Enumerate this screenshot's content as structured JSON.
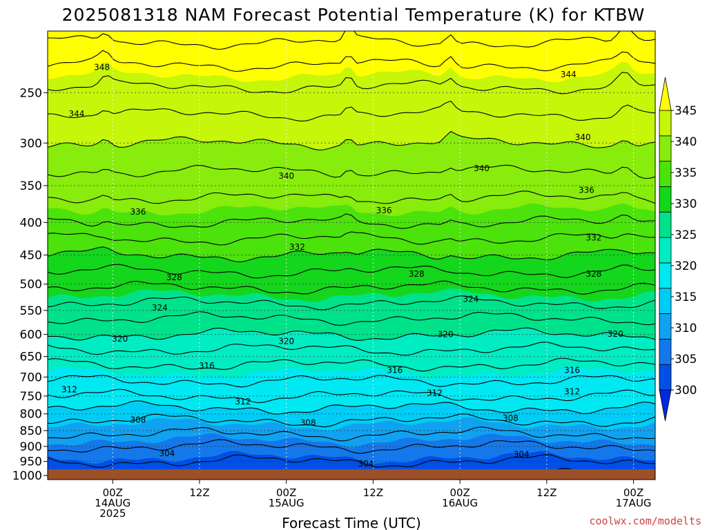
{
  "chart_data": {
    "type": "contour",
    "title": "2025081318 NAM Forecast Potential Temperature (K) for KTBW",
    "xlabel": "Forecast Time (UTC)",
    "ylabel": "",
    "y_scale": "log",
    "ylim": [
      1015,
      200
    ],
    "y_ticks": [
      250,
      300,
      350,
      400,
      450,
      500,
      550,
      600,
      650,
      700,
      750,
      800,
      850,
      900,
      950,
      1000
    ],
    "xlim_hours": [
      -9,
      75
    ],
    "x_ticks": [
      {
        "hour": 0,
        "lines": [
          "00Z",
          "14AUG",
          "2025"
        ]
      },
      {
        "hour": 12,
        "lines": [
          "12Z"
        ]
      },
      {
        "hour": 24,
        "lines": [
          "00Z",
          "15AUG"
        ]
      },
      {
        "hour": 36,
        "lines": [
          "12Z"
        ]
      },
      {
        "hour": 48,
        "lines": [
          "00Z",
          "16AUG"
        ]
      },
      {
        "hour": 60,
        "lines": [
          "12Z"
        ]
      },
      {
        "hour": 72,
        "lines": [
          "00Z",
          "17AUG"
        ]
      }
    ],
    "colorbar": {
      "levels": [
        300,
        305,
        310,
        315,
        320,
        325,
        330,
        335,
        340,
        345
      ],
      "labels": [
        "345",
        "340",
        "335",
        "330",
        "325",
        "320",
        "315",
        "310",
        "305",
        "300"
      ],
      "colors": [
        "#0028e0",
        "#0050e6",
        "#1478ea",
        "#10a2f0",
        "#00cdf5",
        "#00e8f2",
        "#00ecc2",
        "#00e28a",
        "#14d61c",
        "#4ce20c",
        "#88ec0c",
        "#c6f60a",
        "#ffff00"
      ],
      "extend": "both"
    },
    "contour_interval": 2,
    "profile": [
      {
        "p": 1000,
        "theta": 300.5
      },
      {
        "p": 950,
        "theta": 302
      },
      {
        "p": 900,
        "theta": 304
      },
      {
        "p": 850,
        "theta": 306.5
      },
      {
        "p": 800,
        "theta": 309
      },
      {
        "p": 750,
        "theta": 312
      },
      {
        "p": 700,
        "theta": 314.5
      },
      {
        "p": 650,
        "theta": 317
      },
      {
        "p": 600,
        "theta": 320
      },
      {
        "p": 550,
        "theta": 323
      },
      {
        "p": 500,
        "theta": 326.5
      },
      {
        "p": 450,
        "theta": 330
      },
      {
        "p": 400,
        "theta": 334
      },
      {
        "p": 350,
        "theta": 337
      },
      {
        "p": 300,
        "theta": 340
      },
      {
        "p": 250,
        "theta": 343.5
      },
      {
        "p": 200,
        "theta": 349
      }
    ],
    "contour_labels": [
      {
        "value": "348",
        "hour": -1.5,
        "p": 228
      },
      {
        "value": "344",
        "hour": -5,
        "p": 270
      },
      {
        "value": "344",
        "hour": 63,
        "p": 234
      },
      {
        "value": "340",
        "hour": 24,
        "p": 338
      },
      {
        "value": "340",
        "hour": 51,
        "p": 329
      },
      {
        "value": "340",
        "hour": 65,
        "p": 294
      },
      {
        "value": "336",
        "hour": 3.5,
        "p": 385
      },
      {
        "value": "336",
        "hour": 37.5,
        "p": 383
      },
      {
        "value": "336",
        "hour": 65.5,
        "p": 356
      },
      {
        "value": "332",
        "hour": 25.5,
        "p": 437
      },
      {
        "value": "332",
        "hour": 66.5,
        "p": 423
      },
      {
        "value": "328",
        "hour": 8.5,
        "p": 488
      },
      {
        "value": "328",
        "hour": 42,
        "p": 482
      },
      {
        "value": "328",
        "hour": 66.5,
        "p": 482
      },
      {
        "value": "324",
        "hour": 6.5,
        "p": 545
      },
      {
        "value": "324",
        "hour": 49.5,
        "p": 528
      },
      {
        "value": "320",
        "hour": 1,
        "p": 610
      },
      {
        "value": "320",
        "hour": 24,
        "p": 615
      },
      {
        "value": "320",
        "hour": 46,
        "p": 600
      },
      {
        "value": "320",
        "hour": 69.5,
        "p": 599
      },
      {
        "value": "316",
        "hour": 13,
        "p": 672
      },
      {
        "value": "316",
        "hour": 39,
        "p": 683
      },
      {
        "value": "316",
        "hour": 63.5,
        "p": 683
      },
      {
        "value": "312",
        "hour": -6,
        "p": 733
      },
      {
        "value": "312",
        "hour": 18,
        "p": 765
      },
      {
        "value": "312",
        "hour": 44.5,
        "p": 742
      },
      {
        "value": "312",
        "hour": 63.5,
        "p": 738
      },
      {
        "value": "308",
        "hour": 3.5,
        "p": 818
      },
      {
        "value": "308",
        "hour": 27,
        "p": 826
      },
      {
        "value": "308",
        "hour": 55,
        "p": 813
      },
      {
        "value": "304",
        "hour": 7.5,
        "p": 923
      },
      {
        "value": "304",
        "hour": 35,
        "p": 958
      },
      {
        "value": "304",
        "hour": 56.5,
        "p": 927
      }
    ]
  },
  "credit": "coolwx.com/modelts"
}
